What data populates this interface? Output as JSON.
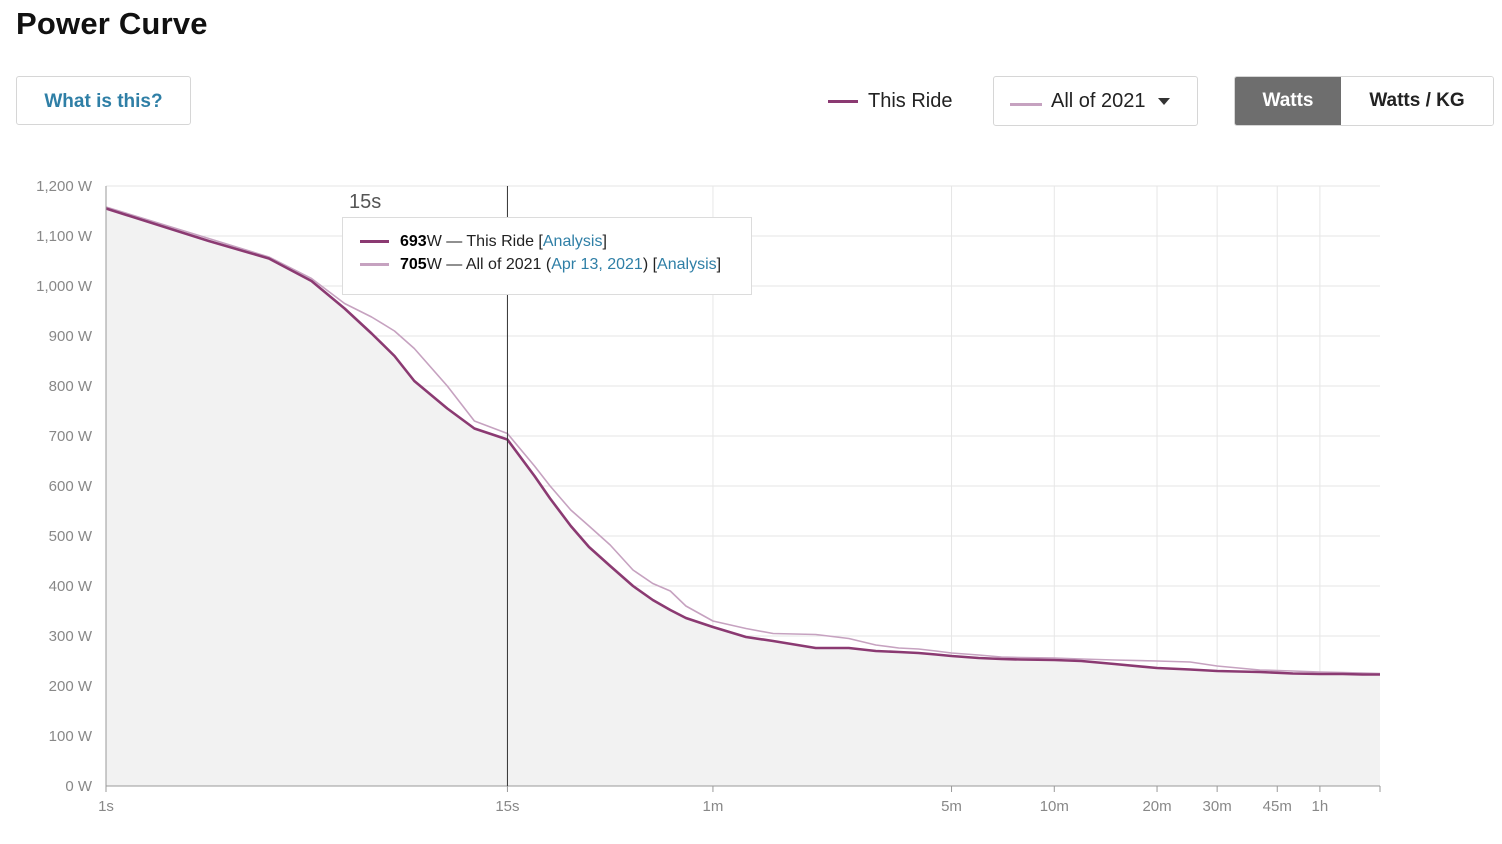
{
  "page": {
    "title": "Power Curve"
  },
  "controls": {
    "help_label": "What is this?",
    "this_ride_label": "This Ride",
    "compare_label": "All of 2021",
    "unit_watts": "Watts",
    "unit_wkg": "Watts / KG"
  },
  "colors": {
    "this_ride": "#8b3a72",
    "compare": "#c6a2c0",
    "fill": "#f2f2f2",
    "grid": "#e6e6e6",
    "accent_link": "#2f7fa6"
  },
  "tooltip": {
    "time_label": "15s",
    "row1": {
      "value": "693",
      "unit": " W — This Ride [",
      "link": "Analysis",
      "close": "]"
    },
    "row2": {
      "value": "705",
      "unit": " W — All of 2021 (",
      "date": "Apr 13, 2021",
      "mid": ") [",
      "link": "Analysis",
      "close": "]"
    }
  },
  "chart_data": {
    "type": "line",
    "x_scale": "log",
    "x_unit": "seconds",
    "ylim": [
      0,
      1200
    ],
    "xlim": [
      1,
      5400
    ],
    "y_ticks": [
      {
        "v": 0,
        "label": "0 W"
      },
      {
        "v": 100,
        "label": "100 W"
      },
      {
        "v": 200,
        "label": "200 W"
      },
      {
        "v": 300,
        "label": "300 W"
      },
      {
        "v": 400,
        "label": "400 W"
      },
      {
        "v": 500,
        "label": "500 W"
      },
      {
        "v": 600,
        "label": "600 W"
      },
      {
        "v": 700,
        "label": "700 W"
      },
      {
        "v": 800,
        "label": "800 W"
      },
      {
        "v": 900,
        "label": "900 W"
      },
      {
        "v": 1000,
        "label": "1,000 W"
      },
      {
        "v": 1100,
        "label": "1,100 W"
      },
      {
        "v": 1200,
        "label": "1,200 W"
      }
    ],
    "x_ticks": [
      {
        "v": 1,
        "label": "1s"
      },
      {
        "v": 15,
        "label": "15s"
      },
      {
        "v": 60,
        "label": "1m"
      },
      {
        "v": 300,
        "label": "5m"
      },
      {
        "v": 600,
        "label": "10m"
      },
      {
        "v": 1200,
        "label": "20m"
      },
      {
        "v": 1800,
        "label": "30m"
      },
      {
        "v": 2700,
        "label": "45m"
      },
      {
        "v": 3600,
        "label": "1h"
      }
    ],
    "cursor_x": 15,
    "grid": true,
    "series": [
      {
        "name": "This Ride",
        "x": [
          1,
          2,
          3,
          4,
          5,
          6,
          7,
          8,
          10,
          12,
          15,
          18,
          20,
          23,
          26,
          30,
          35,
          40,
          45,
          50,
          60,
          75,
          90,
          120,
          150,
          180,
          210,
          240,
          270,
          300,
          360,
          420,
          480,
          600,
          720,
          900,
          1200,
          1500,
          1800,
          2400,
          3000,
          3600,
          4200,
          4800,
          5400
        ],
        "values": [
          1155,
          1090,
          1055,
          1010,
          955,
          905,
          860,
          810,
          755,
          715,
          693,
          620,
          575,
          520,
          478,
          440,
          400,
          372,
          352,
          336,
          318,
          298,
          290,
          276,
          276,
          270,
          268,
          266,
          263,
          260,
          256,
          254,
          253,
          252,
          250,
          244,
          236,
          233,
          230,
          228,
          225,
          224,
          224,
          223,
          223
        ]
      },
      {
        "name": "All of 2021",
        "x": [
          1,
          2,
          3,
          4,
          5,
          6,
          7,
          8,
          10,
          12,
          15,
          18,
          20,
          23,
          26,
          30,
          35,
          40,
          45,
          50,
          60,
          75,
          90,
          120,
          150,
          180,
          210,
          240,
          270,
          300,
          360,
          420,
          480,
          600,
          720,
          900,
          1200,
          1500,
          1800,
          2400,
          3000,
          3600,
          4200,
          4800,
          5400
        ],
        "values": [
          1158,
          1095,
          1058,
          1015,
          965,
          938,
          910,
          875,
          800,
          730,
          705,
          640,
          600,
          552,
          520,
          482,
          432,
          405,
          390,
          360,
          330,
          315,
          305,
          303,
          295,
          282,
          276,
          274,
          270,
          266,
          262,
          258,
          257,
          256,
          254,
          252,
          250,
          248,
          240,
          232,
          230,
          228,
          227,
          226,
          225
        ]
      }
    ]
  }
}
